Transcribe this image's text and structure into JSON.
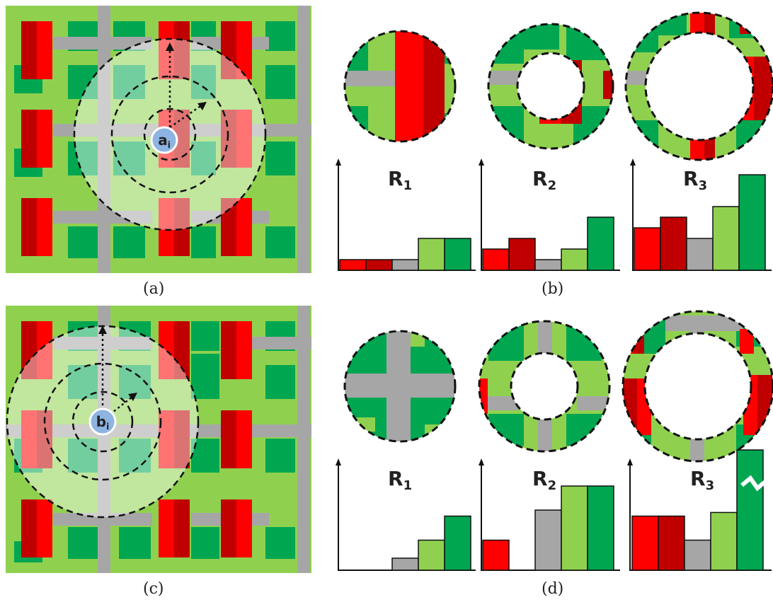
{
  "captions": {
    "a": "(a)",
    "b": "(b)",
    "c": "(c)",
    "d": "(d)"
  },
  "center_labels": {
    "a": {
      "main": "a",
      "sub": "i"
    },
    "c": {
      "main": "b",
      "sub": "i"
    }
  },
  "ring_labels": [
    {
      "main": "R",
      "sub": "1"
    },
    {
      "main": "R",
      "sub": "2"
    },
    {
      "main": "R",
      "sub": "3"
    }
  ],
  "colors": {
    "background_green": "#8fd14f",
    "dark_green": "#00a650",
    "road_gray": "#a6a6a6",
    "red": "#ff0000",
    "dark_red": "#c00000",
    "center_circle": "#8db4e2"
  },
  "histogram_categories": [
    "red",
    "dark-red",
    "gray",
    "light-green",
    "dark-green"
  ],
  "histograms_b": [
    {
      "ring": "R1",
      "values": [
        0.1,
        0.1,
        0.1,
        0.3,
        0.3
      ]
    },
    {
      "ring": "R2",
      "values": [
        0.2,
        0.3,
        0.1,
        0.2,
        0.5
      ]
    },
    {
      "ring": "R3",
      "values": [
        0.4,
        0.5,
        0.3,
        0.6,
        0.9
      ]
    }
  ],
  "histograms_d": [
    {
      "ring": "R1",
      "values": [
        0.0,
        0.0,
        0.1,
        0.25,
        0.45
      ]
    },
    {
      "ring": "R2",
      "values": [
        0.25,
        0.0,
        0.5,
        0.7,
        0.7
      ]
    },
    {
      "ring": "R3",
      "values": [
        0.45,
        0.45,
        0.25,
        0.48,
        1.0
      ],
      "axis_break": true
    }
  ]
}
